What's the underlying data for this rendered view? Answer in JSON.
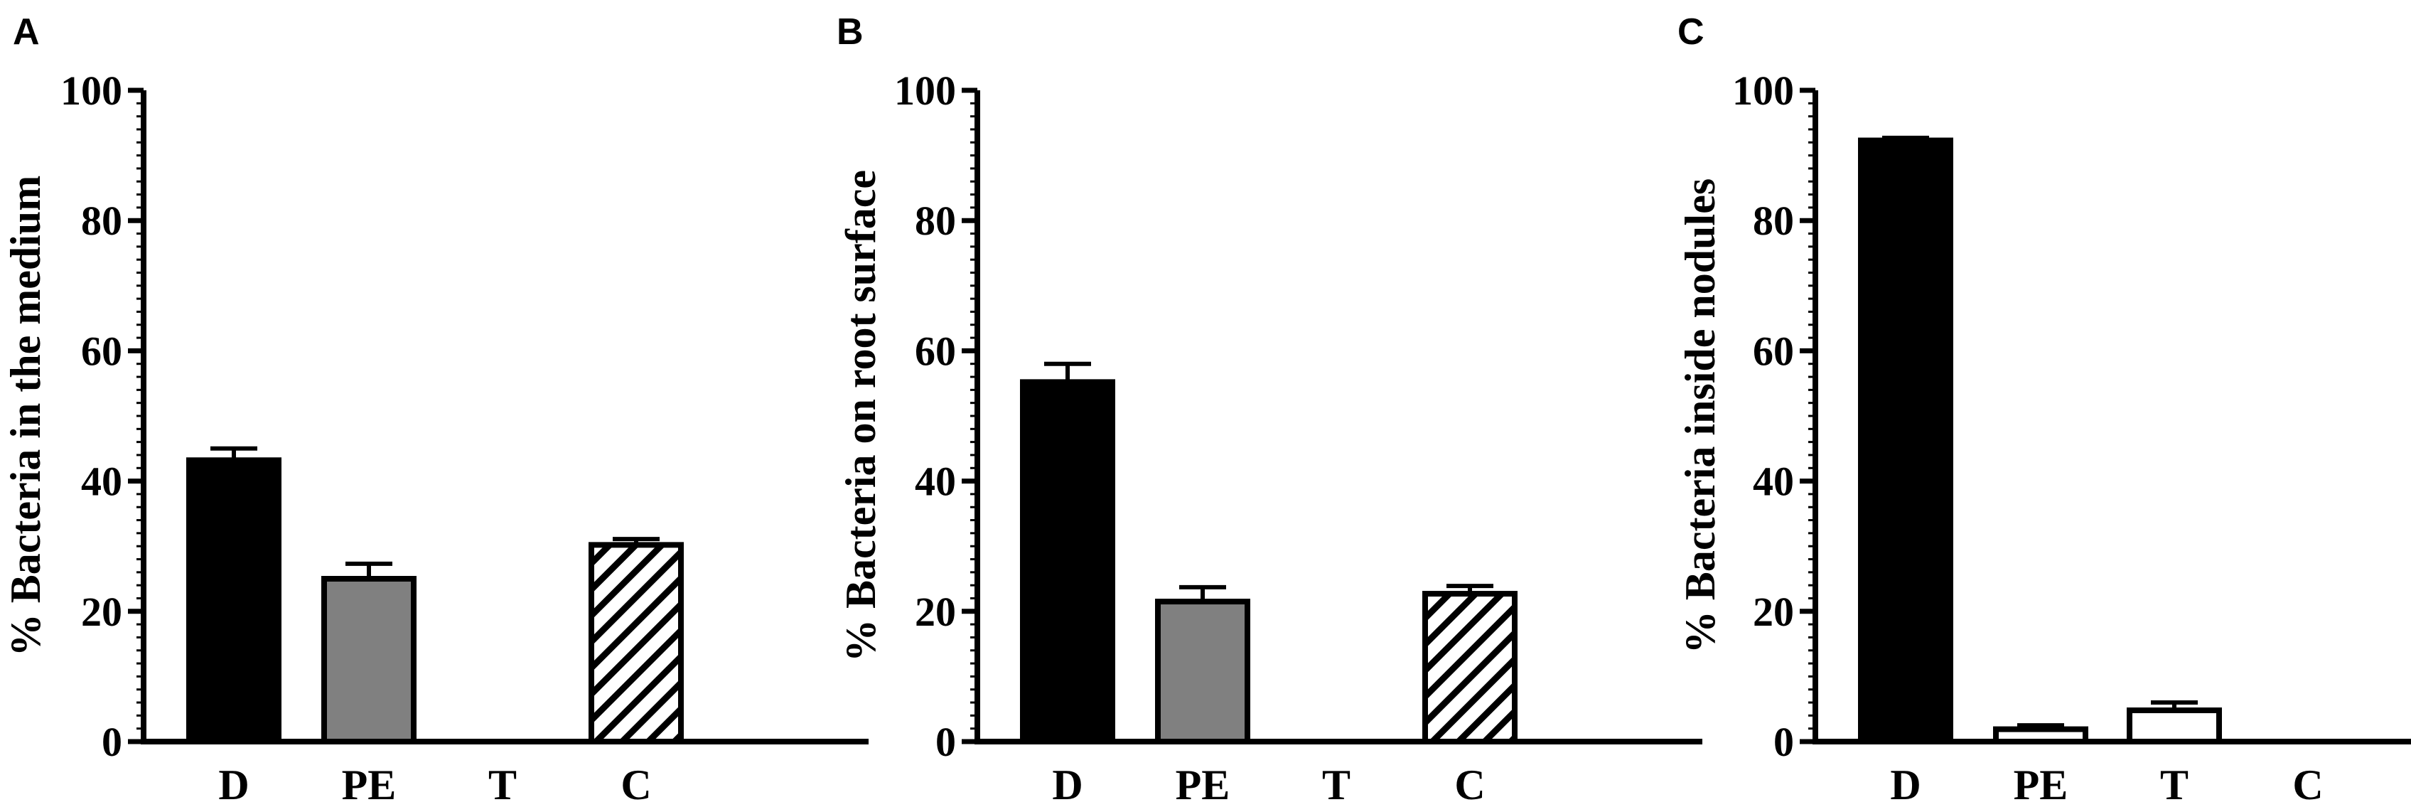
{
  "chart_data": [
    {
      "panel": "A",
      "type": "bar",
      "ylabel": "% Bacteria in the medium",
      "ylim": [
        0,
        100
      ],
      "yticks": [
        0,
        20,
        40,
        60,
        80,
        100
      ],
      "categories": [
        "D",
        "PE",
        "T",
        "C"
      ],
      "values": [
        43.2,
        25.0,
        0,
        30.2
      ],
      "errors": [
        1.8,
        2.3,
        0,
        0.9
      ],
      "styles": [
        "black",
        "gray",
        "white",
        "hatched"
      ],
      "grid": false
    },
    {
      "panel": "B",
      "type": "bar",
      "ylabel": "% Bacteria on root surface",
      "ylim": [
        0,
        100
      ],
      "yticks": [
        0,
        20,
        40,
        60,
        80,
        100
      ],
      "categories": [
        "D",
        "PE",
        "T",
        "C"
      ],
      "values": [
        55.2,
        21.5,
        0,
        22.7
      ],
      "errors": [
        2.8,
        2.2,
        0,
        1.2
      ],
      "styles": [
        "black",
        "gray",
        "white",
        "hatched"
      ],
      "grid": false
    },
    {
      "panel": "C",
      "type": "bar",
      "ylabel": "% Bacteria inside nodules",
      "ylim": [
        0,
        100
      ],
      "yticks": [
        0,
        20,
        40,
        60,
        80,
        100
      ],
      "categories": [
        "D",
        "PE",
        "T",
        "C"
      ],
      "values": [
        92.3,
        1.9,
        4.8,
        0
      ],
      "errors": [
        0.4,
        0.6,
        1.2,
        0
      ],
      "styles": [
        "black",
        "white",
        "white",
        "white"
      ],
      "grid": false
    }
  ],
  "colors": {
    "black": "#000000",
    "gray": "#808080",
    "white": "#ffffff"
  }
}
